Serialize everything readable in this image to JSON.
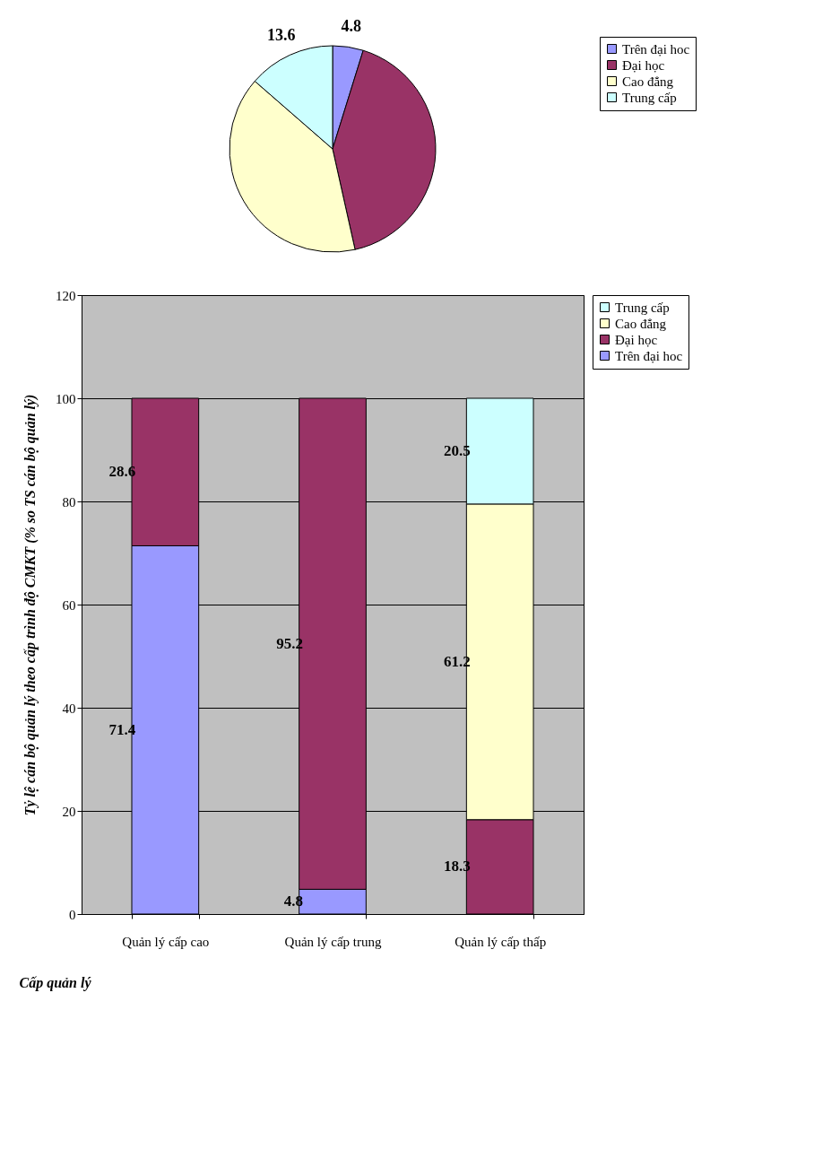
{
  "chart_data": [
    {
      "type": "pie",
      "categories": [
        "Trên đại hoc",
        "Đại học",
        "Cao đẳng",
        "Trung cấp"
      ],
      "values": [
        4.8,
        41.7,
        39.9,
        13.6
      ],
      "colors": [
        "#9999ff",
        "#993366",
        "#ffffcc",
        "#ccffff"
      ],
      "value_labels": [
        "4.8",
        null,
        null,
        "13.6"
      ],
      "legend": "right"
    },
    {
      "type": "bar",
      "stacked": true,
      "categories": [
        "Quản lý cấp cao",
        "Quản lý cấp trung",
        "Quản lý cấp thấp"
      ],
      "xlabel": "Cấp quản lý",
      "ylabel": "Tỷ lệ cán bộ quản lý theo cấp trình độ CMKT (% so TS cán bộ quản lý)",
      "ylim": [
        0,
        120
      ],
      "yticks": [
        0,
        20,
        40,
        60,
        80,
        100,
        120
      ],
      "grid": "y",
      "legend": "right",
      "data_labels": true,
      "series": [
        {
          "name": "Trên đại hoc",
          "color": "#9999ff",
          "values": [
            71.4,
            4.8,
            null
          ]
        },
        {
          "name": "Đại học",
          "color": "#993366",
          "values": [
            28.6,
            95.2,
            18.3
          ]
        },
        {
          "name": "Cao đẳng",
          "color": "#ffffcc",
          "values": [
            null,
            null,
            61.2
          ]
        },
        {
          "name": "Trung cấp",
          "color": "#ccffff",
          "values": [
            null,
            null,
            20.5
          ]
        }
      ]
    }
  ]
}
